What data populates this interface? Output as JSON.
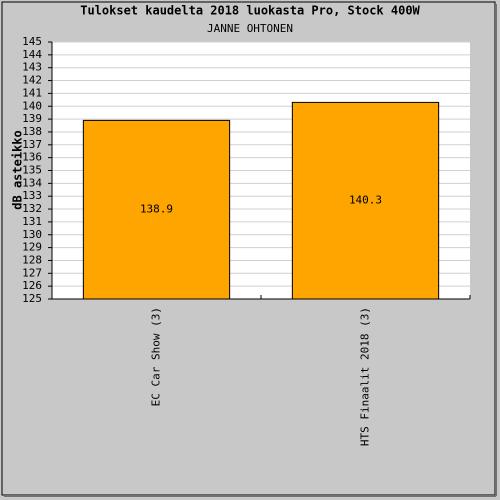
{
  "chart_data": {
    "type": "bar",
    "title": "Tulokset kaudelta 2018 luokasta Pro, Stock 400W",
    "subtitle": "JANNE OHTONEN",
    "y_label": "dB asteikko",
    "categories": [
      "EC Car Show (3)",
      "HTS Finaalit 2018 (3)"
    ],
    "values": [
      138.9,
      140.3
    ],
    "color": "#ffa500",
    "ylim": [
      125,
      145
    ],
    "yticks": [
      125,
      126,
      127,
      128,
      129,
      130,
      131,
      132,
      133,
      134,
      135,
      136,
      137,
      138,
      139,
      140,
      141,
      142,
      143,
      144,
      145
    ],
    "grid": true
  }
}
